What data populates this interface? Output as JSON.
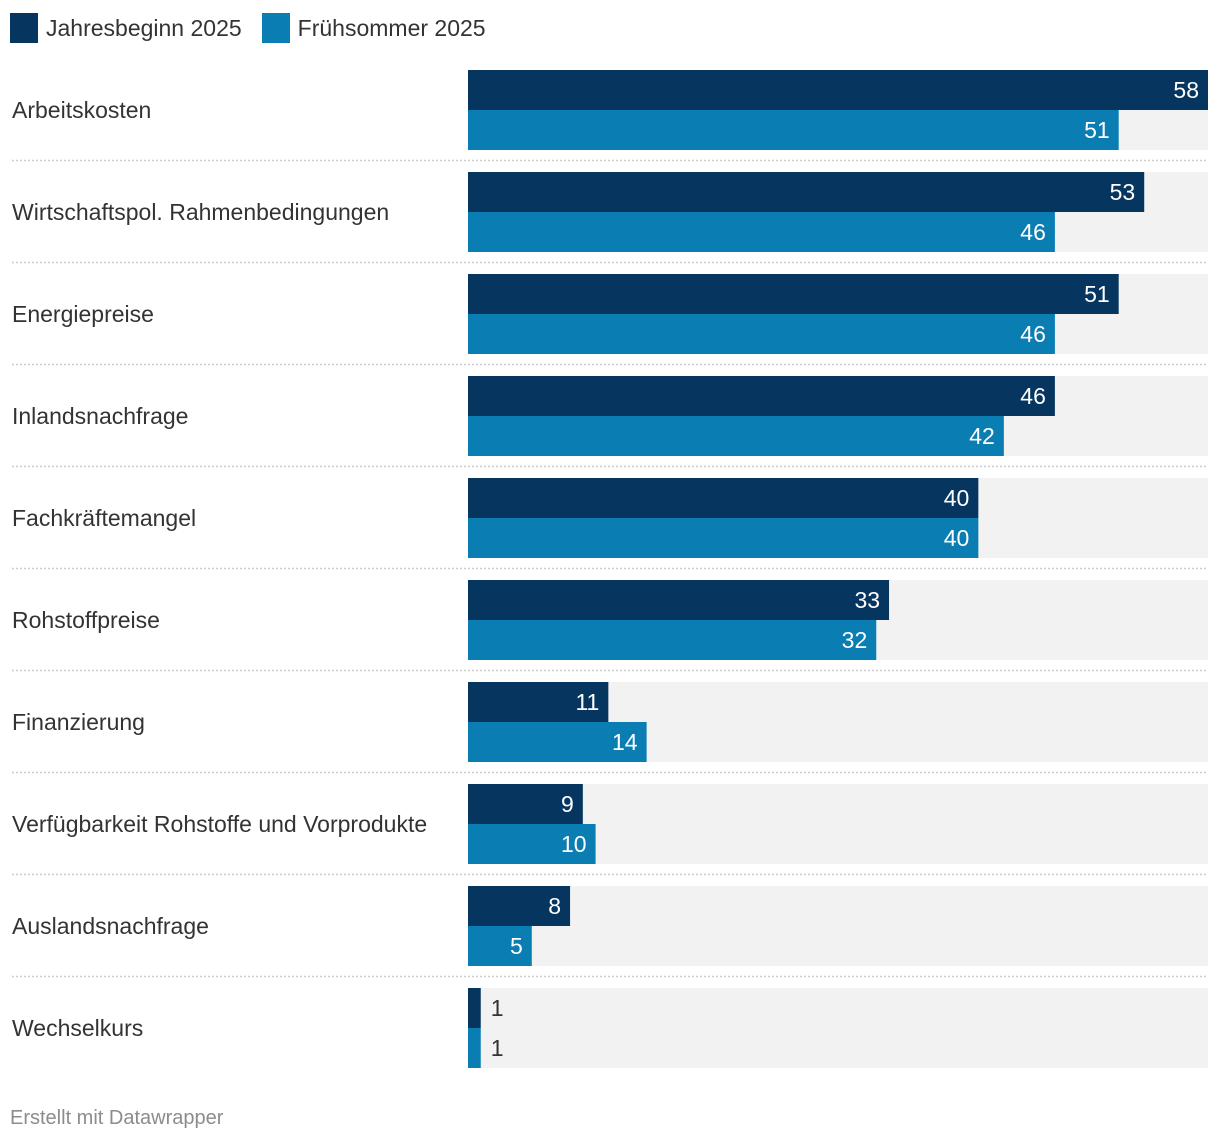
{
  "chart_data": {
    "type": "bar",
    "orientation": "horizontal-grouped",
    "categories": [
      "Arbeitskosten",
      "Wirtschaftspol. Rahmenbedingungen",
      "Energiepreise",
      "Inlandsnachfrage",
      "Fachkräftemangel",
      "Rohstoffpreise",
      "Finanzierung",
      "Verfügbarkeit Rohstoffe und Vorprodukte",
      "Auslandsnachfrage",
      "Wechselkurs"
    ],
    "series": [
      {
        "name": "Jahresbeginn 2025",
        "color": "#06365f",
        "values": [
          58,
          53,
          51,
          46,
          40,
          33,
          11,
          9,
          8,
          1
        ]
      },
      {
        "name": "Frühsommer 2025",
        "color": "#0a7db3",
        "values": [
          51,
          46,
          46,
          42,
          40,
          32,
          14,
          10,
          5,
          1
        ]
      }
    ],
    "xlim": [
      0,
      58
    ],
    "background_color": "#f2f2f2",
    "legend_position": "top-left",
    "value_labels": "inside-end"
  },
  "footer": {
    "credit": "Erstellt mit Datawrapper"
  }
}
